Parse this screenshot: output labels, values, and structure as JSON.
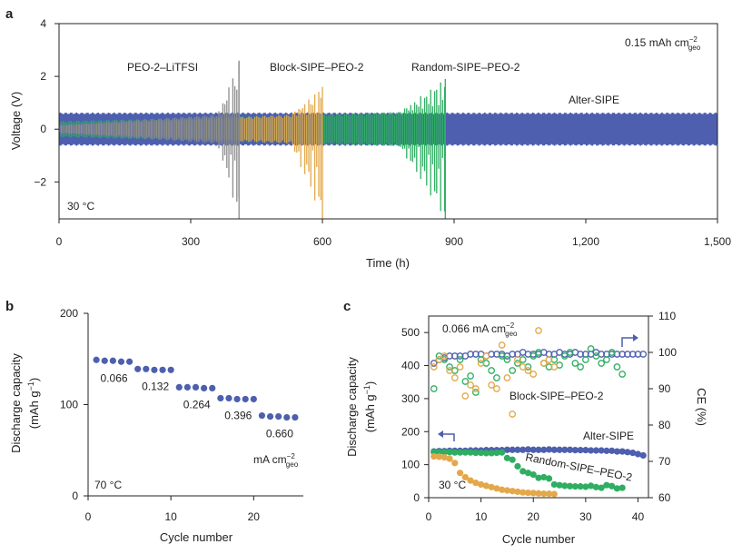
{
  "colors": {
    "grey": "#8c8c8c",
    "orange": "#e3a84a",
    "green": "#2fae62",
    "blue": "#4d5fae",
    "axis": "#222222"
  },
  "chart_data": [
    {
      "panel_label": "a",
      "type": "line",
      "xlabel": "Time (h)",
      "ylabel": "Voltage (V)",
      "xlim": [
        0,
        1500
      ],
      "ylim": [
        -3.4,
        4
      ],
      "x_ticks": [
        0,
        300,
        600,
        900,
        1200,
        1500
      ],
      "x_tick_labels": [
        "0",
        "300",
        "600",
        "900",
        "1,200",
        "1,500"
      ],
      "y_ticks": [
        4,
        2,
        0,
        -2
      ],
      "y_tick_labels": [
        "4",
        "2",
        "0",
        "−2"
      ],
      "annotation_condition": "30 °C",
      "annotation_areal_main": "0.15 mAh cm",
      "annotation_areal_sup": "−2",
      "annotation_areal_sub": "geo",
      "series": [
        {
          "name": "Alter-SIPE",
          "end_time_h": 1500,
          "base_amplitude_V": 0.6,
          "final_amplitude_V": 0.6,
          "spike_max_V": 0.6,
          "spike_min_V": -0.6
        },
        {
          "name": "PEO-2–LiTFSI",
          "end_time_h": 410,
          "base_amplitude_V": 0.15,
          "final_amplitude_V": 0.6,
          "spike_max_V": 2.6,
          "spike_min_V": -3.4
        },
        {
          "name": "Block-SIPE–PEO-2",
          "end_time_h": 600,
          "base_amplitude_V": 0.15,
          "final_amplitude_V": 0.6,
          "spike_max_V": 1.6,
          "spike_min_V": -3.4
        },
        {
          "name": "Random-SIPE–PEO-2",
          "end_time_h": 880,
          "base_amplitude_V": 0.3,
          "final_amplitude_V": 0.7,
          "spike_max_V": 1.9,
          "spike_min_V": -3.4
        }
      ]
    },
    {
      "panel_label": "b",
      "type": "scatter",
      "xlabel": "Cycle number",
      "ylabel_line1": "Discharge capacity",
      "ylabel_line2_main": "(mAh g",
      "ylabel_line2_sup": "−1",
      "ylabel_line2_end": ")",
      "xlim": [
        0,
        26
      ],
      "ylim": [
        0,
        200
      ],
      "x_ticks": [
        0,
        10,
        20
      ],
      "y_ticks": [
        0,
        100,
        200
      ],
      "annotation_condition": "70 °C",
      "unit_main": "mA cm",
      "unit_sup": "−2",
      "unit_sub": "geo",
      "series": [
        {
          "name": "Discharge capacity",
          "x": [
            1,
            2,
            3,
            4,
            5,
            6,
            7,
            8,
            9,
            10,
            11,
            12,
            13,
            14,
            15,
            16,
            17,
            18,
            19,
            20,
            21,
            22,
            23,
            24,
            25
          ],
          "y": [
            149,
            148,
            148,
            147,
            147,
            139,
            139,
            138,
            138,
            138,
            119,
            119,
            119,
            118,
            118,
            107,
            107,
            106,
            106,
            106,
            88,
            87,
            87,
            86,
            86
          ]
        }
      ],
      "rate_labels": [
        "0.066",
        "0.132",
        "0.264",
        "0.396",
        "0.660"
      ],
      "rate_label_anchor_x": [
        5,
        10,
        15,
        20,
        25
      ],
      "rate_label_anchor_y": [
        147,
        138,
        118,
        106,
        86
      ]
    },
    {
      "panel_label": "c",
      "type": "scatter",
      "xlabel": "Cycle number",
      "ylabel_line1": "Discharge capacity",
      "ylabel_line2_main": "(mAh g",
      "ylabel_line2_sup": "−1",
      "ylabel_line2_end": ")",
      "y2label": "CE (%)",
      "xlim": [
        0,
        42
      ],
      "ylim": [
        0,
        550
      ],
      "y2lim": [
        60,
        110
      ],
      "x_ticks": [
        0,
        10,
        20,
        30,
        40
      ],
      "y_ticks": [
        0,
        100,
        200,
        300,
        400,
        500
      ],
      "y2_ticks": [
        60,
        70,
        80,
        90,
        100,
        110
      ],
      "annotation_condition": "30 °C",
      "annotation_rate_main": "0.066 mA cm",
      "annotation_rate_sup": "−2",
      "annotation_rate_sub": "geo",
      "series_labels": {
        "block": "Block-SIPE–PEO-2",
        "alter": "Alter-SIPE",
        "random": "Random-SIPE–PEO-2"
      },
      "capacity_series": [
        {
          "name": "Alter-SIPE",
          "x": [
            1,
            2,
            3,
            4,
            5,
            6,
            7,
            8,
            9,
            10,
            11,
            12,
            13,
            14,
            15,
            16,
            17,
            18,
            19,
            20,
            21,
            22,
            23,
            24,
            25,
            26,
            27,
            28,
            29,
            30,
            31,
            32,
            33,
            34,
            35,
            36,
            37,
            38,
            39,
            40,
            41
          ],
          "y": [
            140,
            141,
            141,
            142,
            142,
            142,
            142,
            143,
            143,
            143,
            144,
            144,
            144,
            144,
            145,
            145,
            145,
            145,
            146,
            145,
            145,
            145,
            146,
            145,
            145,
            145,
            145,
            144,
            144,
            144,
            143,
            143,
            143,
            142,
            142,
            140,
            140,
            138,
            136,
            132,
            128
          ]
        },
        {
          "name": "Random-SIPE–PEO-2",
          "x": [
            1,
            2,
            3,
            4,
            5,
            6,
            7,
            8,
            9,
            10,
            11,
            12,
            13,
            14,
            15,
            16,
            17,
            18,
            19,
            20,
            21,
            22,
            23,
            24,
            25,
            26,
            27,
            28,
            29,
            30,
            31,
            32,
            33,
            34,
            35,
            36,
            37
          ],
          "y": [
            138,
            138,
            138,
            138,
            137,
            137,
            137,
            137,
            136,
            136,
            135,
            135,
            136,
            137,
            120,
            115,
            95,
            80,
            75,
            70,
            60,
            62,
            58,
            40,
            38,
            36,
            35,
            34,
            34,
            33,
            36,
            32,
            30,
            38,
            35,
            28,
            30
          ]
        },
        {
          "name": "Block-SIPE–PEO-2",
          "x": [
            1,
            2,
            3,
            4,
            5,
            6,
            7,
            8,
            9,
            10,
            11,
            12,
            13,
            14,
            15,
            16,
            17,
            18,
            19,
            20,
            21,
            22,
            23,
            24
          ],
          "y": [
            125,
            124,
            122,
            118,
            105,
            75,
            62,
            52,
            45,
            40,
            36,
            32,
            28,
            24,
            22,
            20,
            18,
            16,
            15,
            14,
            13,
            12,
            12,
            11
          ]
        }
      ],
      "ce_series": [
        {
          "name": "Alter-SIPE",
          "x": [
            1,
            2,
            3,
            4,
            5,
            6,
            7,
            8,
            9,
            10,
            11,
            12,
            13,
            14,
            15,
            16,
            17,
            18,
            19,
            20,
            21,
            22,
            23,
            24,
            25,
            26,
            27,
            28,
            29,
            30,
            31,
            32,
            33,
            34,
            35,
            36,
            37,
            38,
            39,
            40,
            41
          ],
          "y": [
            97,
            98,
            98.5,
            99,
            99,
            99,
            99,
            99.5,
            99.5,
            99.5,
            99,
            99.5,
            99.5,
            99.5,
            99,
            99.5,
            99.5,
            100,
            99.5,
            99.5,
            99.5,
            100,
            99.5,
            99.5,
            100,
            99.5,
            99.5,
            100,
            99.5,
            99.5,
            99.5,
            100,
            99.5,
            99.5,
            99.5,
            99.5,
            99.5,
            99.5,
            99.5,
            99.5,
            99.5
          ]
        },
        {
          "name": "Random-SIPE–PEO-2",
          "x": [
            1,
            2,
            3,
            4,
            5,
            6,
            7,
            8,
            9,
            10,
            11,
            12,
            13,
            14,
            15,
            16,
            17,
            18,
            19,
            20,
            21,
            22,
            23,
            24,
            25,
            26,
            27,
            28,
            29,
            30,
            31,
            32,
            33,
            34,
            35,
            36,
            37
          ],
          "y": [
            90,
            99,
            98,
            96,
            95,
            98,
            92,
            93.5,
            89,
            98,
            97,
            95,
            93,
            99,
            98,
            95,
            97,
            98,
            96,
            99,
            100,
            97,
            96,
            98,
            96.5,
            99,
            100,
            97,
            96,
            98,
            101,
            99,
            97,
            98,
            100,
            96,
            94
          ]
        },
        {
          "name": "Block-SIPE–PEO-2",
          "x": [
            1,
            2,
            3,
            4,
            5,
            6,
            7,
            8,
            9,
            10,
            11,
            12,
            13,
            14,
            15,
            16,
            17,
            18,
            19,
            20,
            21,
            22,
            23,
            24
          ],
          "y": [
            96,
            98,
            99,
            95,
            93,
            96,
            88,
            91,
            90,
            97,
            99,
            91,
            90,
            102,
            93,
            83,
            98,
            96,
            95,
            94,
            106,
            97,
            98,
            96
          ]
        }
      ]
    }
  ]
}
